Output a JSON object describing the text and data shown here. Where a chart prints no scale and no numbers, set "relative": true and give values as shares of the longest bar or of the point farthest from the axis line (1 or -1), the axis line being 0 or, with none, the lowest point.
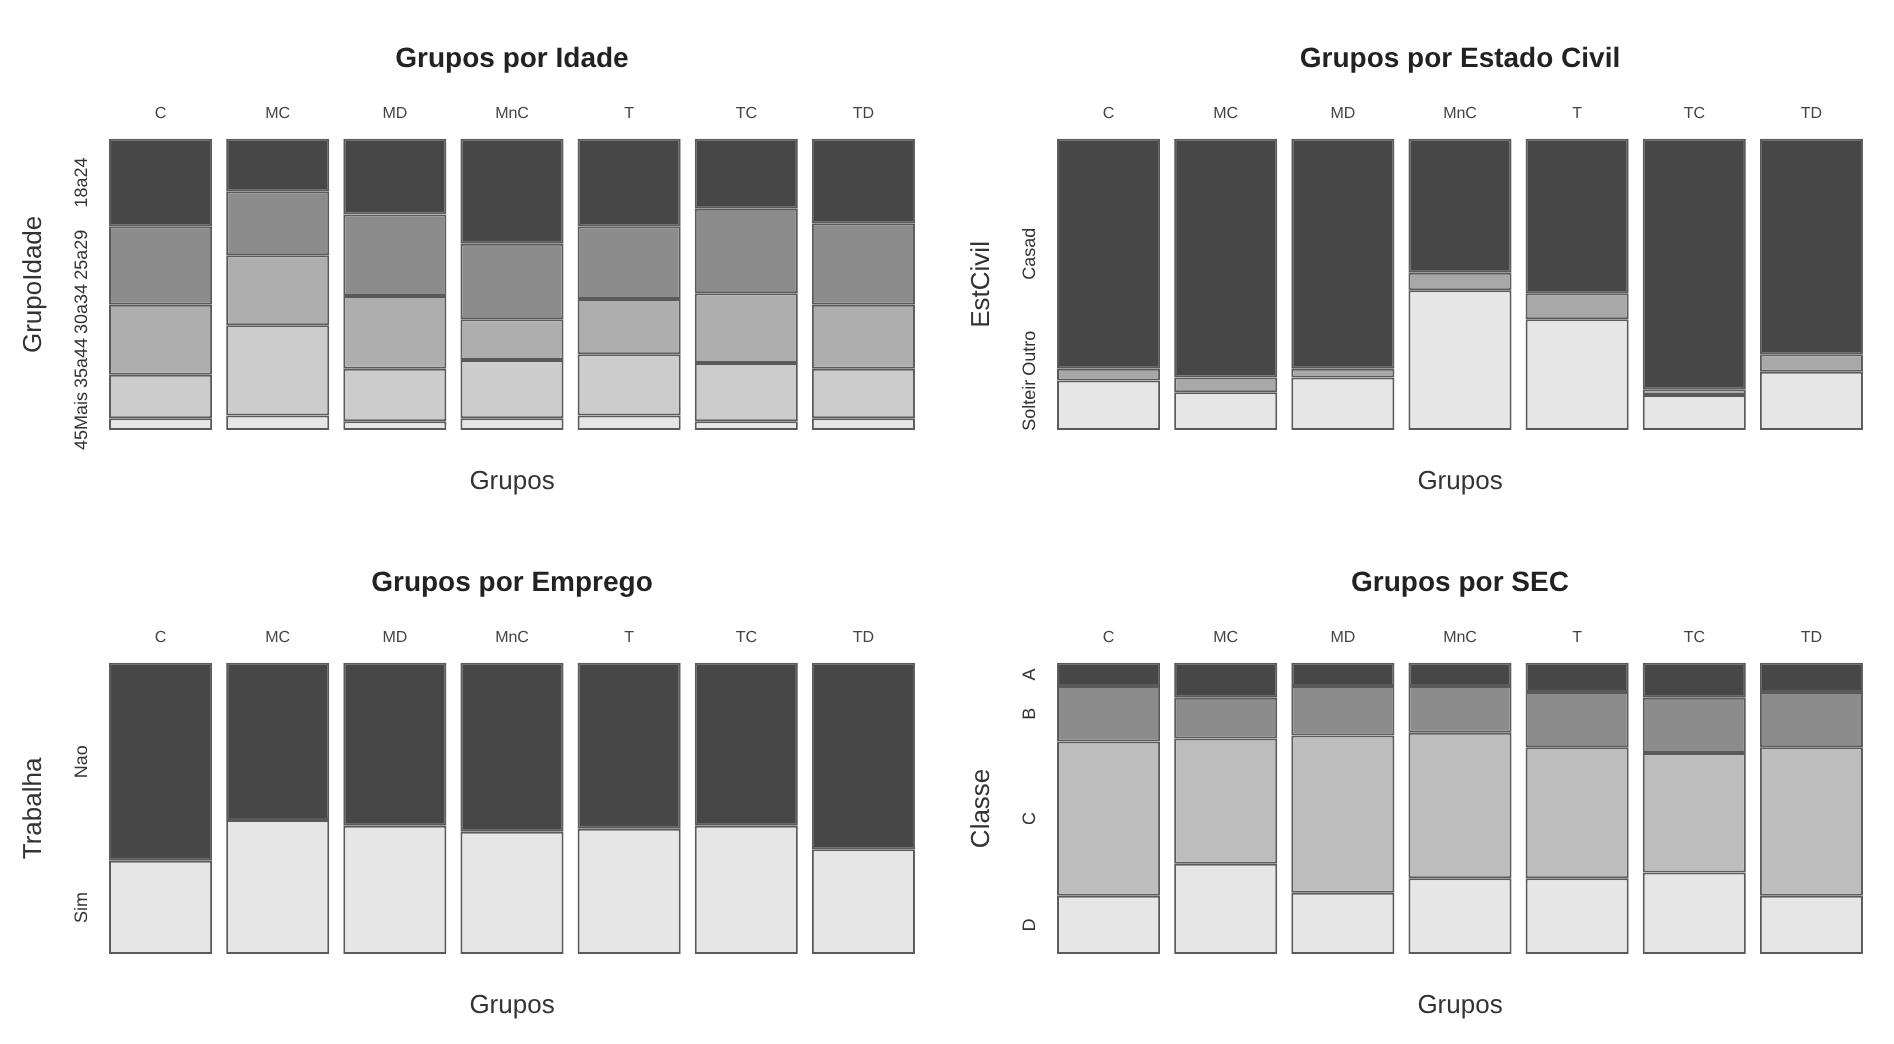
{
  "chart_data": [
    {
      "type": "bar",
      "stacked": true,
      "relative": true,
      "legend": false,
      "title": "Grupos por Idade",
      "xlabel": "Grupos",
      "ylabel": "GrupoIdade",
      "categories": [
        "C",
        "MC",
        "MD",
        "MnC",
        "T",
        "TC",
        "TD"
      ],
      "series": [
        {
          "name": "45Mais",
          "color": "#e6e6e6",
          "values": [
            0.04,
            0.05,
            0.03,
            0.04,
            0.05,
            0.03,
            0.04
          ]
        },
        {
          "name": "35a44",
          "color": "#cccccc",
          "values": [
            0.15,
            0.31,
            0.18,
            0.2,
            0.21,
            0.2,
            0.17
          ]
        },
        {
          "name": "30a34",
          "color": "#aeaeae",
          "values": [
            0.24,
            0.24,
            0.25,
            0.14,
            0.19,
            0.24,
            0.22
          ]
        },
        {
          "name": "25a29",
          "color": "#8c8c8c",
          "values": [
            0.27,
            0.22,
            0.28,
            0.26,
            0.25,
            0.29,
            0.28
          ]
        },
        {
          "name": "18a24",
          "color": "#474747",
          "values": [
            0.3,
            0.18,
            0.26,
            0.36,
            0.3,
            0.24,
            0.29
          ]
        }
      ]
    },
    {
      "type": "bar",
      "stacked": true,
      "relative": true,
      "legend": false,
      "title": "Grupos por Estado Civil",
      "xlabel": "Grupos",
      "ylabel": "EstCivil",
      "categories": [
        "C",
        "MC",
        "MD",
        "MnC",
        "T",
        "TC",
        "TD"
      ],
      "series": [
        {
          "name": "Solteir",
          "color": "#e6e6e6",
          "values": [
            0.17,
            0.13,
            0.18,
            0.48,
            0.38,
            0.12,
            0.2
          ]
        },
        {
          "name": "Outro",
          "color": "#a8a8a8",
          "values": [
            0.04,
            0.05,
            0.03,
            0.06,
            0.09,
            0.02,
            0.06
          ]
        },
        {
          "name": "Casad",
          "color": "#474747",
          "values": [
            0.79,
            0.82,
            0.79,
            0.46,
            0.53,
            0.86,
            0.74
          ]
        }
      ]
    },
    {
      "type": "bar",
      "stacked": true,
      "relative": true,
      "legend": false,
      "title": "Grupos por Emprego",
      "xlabel": "Grupos",
      "ylabel": "Trabalha",
      "categories": [
        "C",
        "MC",
        "MD",
        "MnC",
        "T",
        "TC",
        "TD"
      ],
      "series": [
        {
          "name": "Sim",
          "color": "#e6e6e6",
          "values": [
            0.32,
            0.46,
            0.44,
            0.42,
            0.43,
            0.44,
            0.36
          ]
        },
        {
          "name": "Nao",
          "color": "#474747",
          "values": [
            0.68,
            0.54,
            0.56,
            0.58,
            0.57,
            0.56,
            0.64
          ]
        }
      ]
    },
    {
      "type": "bar",
      "stacked": true,
      "relative": true,
      "legend": false,
      "title": "Grupos por SEC",
      "xlabel": "Grupos",
      "ylabel": "Classe",
      "categories": [
        "C",
        "MC",
        "MD",
        "MnC",
        "T",
        "TC",
        "TD"
      ],
      "series": [
        {
          "name": "D",
          "color": "#e6e6e6",
          "values": [
            0.2,
            0.31,
            0.21,
            0.26,
            0.26,
            0.28,
            0.2
          ]
        },
        {
          "name": "C",
          "color": "#bdbdbd",
          "values": [
            0.53,
            0.43,
            0.54,
            0.5,
            0.45,
            0.41,
            0.51
          ]
        },
        {
          "name": "B",
          "color": "#8c8c8c",
          "values": [
            0.19,
            0.14,
            0.17,
            0.16,
            0.19,
            0.19,
            0.19
          ]
        },
        {
          "name": "A",
          "color": "#474747",
          "values": [
            0.08,
            0.12,
            0.08,
            0.08,
            0.1,
            0.12,
            0.1
          ]
        }
      ]
    }
  ]
}
